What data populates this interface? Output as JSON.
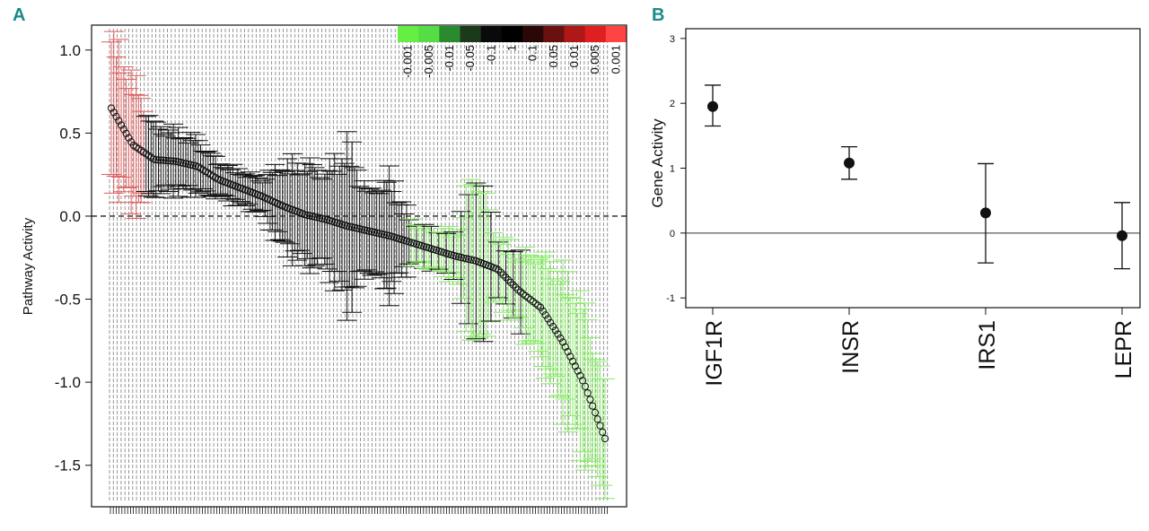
{
  "panels": {
    "a_label": "A",
    "b_label": "B"
  },
  "colors": {
    "up": "#e06060",
    "down": "#88ee66",
    "neutral": "#111111",
    "label": "#1a8a8a"
  },
  "chart_data": [
    {
      "type": "scatter",
      "panel": "A",
      "title": "",
      "xlabel": "",
      "ylabel": "Pathway Activity",
      "ylim": [
        -1.75,
        1.15
      ],
      "yticks": [
        1.0,
        0.5,
        0.0,
        -0.5,
        -1.0,
        -1.5
      ],
      "ytick_labels": [
        "1.0",
        "0.5",
        "0.0",
        "-0.5",
        "-1.0",
        "-1.5"
      ],
      "reference_line": 0,
      "n_points": 200,
      "legend": {
        "position": "top-right",
        "colors": [
          "#66ee44",
          "#55dd44",
          "#2a8a30",
          "#1a3a1a",
          "#0a0a0a",
          "#000000",
          "#2a0808",
          "#6a1010",
          "#b01818",
          "#e02020",
          "#ff4444"
        ],
        "labels": [
          "-0.001",
          "-0.005",
          "-0.01",
          "-0.05",
          "-0.1",
          "1",
          "0.1",
          "0.05",
          "0.01",
          "0.005",
          "0.001"
        ]
      },
      "points": [
        {
          "y": 0.65,
          "err": 0.42
        },
        {
          "y": 0.43,
          "err": 0.38
        },
        {
          "y": 0.34,
          "err": 0.2
        },
        {
          "y": 0.33,
          "err": 0.18
        },
        {
          "y": 0.3,
          "err": 0.16
        },
        {
          "y": 0.22,
          "err": 0.1
        },
        {
          "y": 0.17,
          "err": 0.1
        },
        {
          "y": 0.12,
          "err": 0.1
        },
        {
          "y": 0.06,
          "err": 0.25
        },
        {
          "y": 0.01,
          "err": 0.3
        },
        {
          "y": -0.02,
          "err": 0.28
        },
        {
          "y": -0.06,
          "err": 0.48
        },
        {
          "y": -0.09,
          "err": 0.22
        },
        {
          "y": -0.12,
          "err": 0.35
        },
        {
          "y": -0.16,
          "err": 0.12
        },
        {
          "y": -0.2,
          "err": 0.12
        },
        {
          "y": -0.24,
          "err": 0.14
        },
        {
          "y": -0.27,
          "err": 0.55
        },
        {
          "y": -0.32,
          "err": 0.18
        },
        {
          "y": -0.45,
          "err": 0.22
        },
        {
          "y": -0.55,
          "err": 0.3
        },
        {
          "y": -0.75,
          "err": 0.4
        },
        {
          "y": -1.0,
          "err": 0.45
        },
        {
          "y": -1.34,
          "err": 0.3
        }
      ]
    },
    {
      "type": "scatter",
      "panel": "B",
      "title": "",
      "xlabel": "",
      "ylabel": "Gene Activity",
      "ylim": [
        -1.15,
        3.15
      ],
      "yticks": [
        3,
        2,
        1,
        0,
        -1
      ],
      "ytick_labels": [
        "3",
        "2",
        "1",
        "0",
        "-1"
      ],
      "reference_line": 0,
      "categories": [
        "IGF1R",
        "INSR",
        "IRS1",
        "LEPR"
      ],
      "values": [
        1.95,
        1.08,
        0.31,
        -0.04
      ],
      "err_low": [
        1.65,
        0.83,
        -0.46,
        -0.55
      ],
      "err_high": [
        2.28,
        1.33,
        1.07,
        0.47
      ]
    }
  ]
}
